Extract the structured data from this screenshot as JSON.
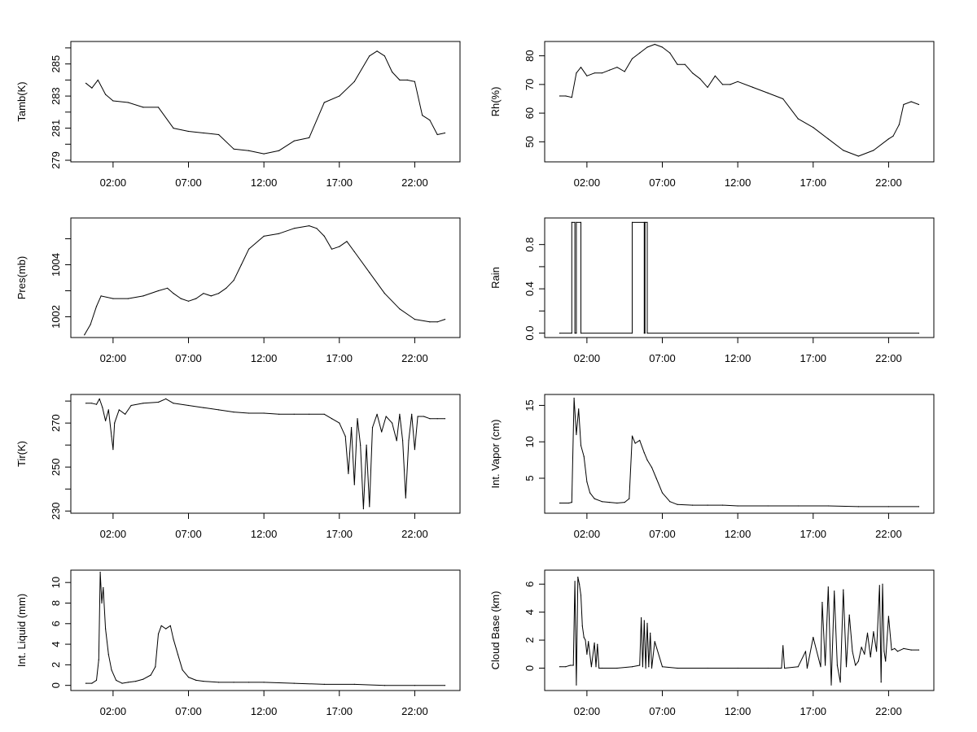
{
  "chart_data": [
    {
      "type": "line",
      "ylabel": "Tamb(K)",
      "xlabel": "",
      "x_ticks": [
        "02:00",
        "07:00",
        "12:00",
        "17:00",
        "22:00"
      ],
      "x_tick_hours": [
        2,
        7,
        12,
        17,
        22
      ],
      "xlim_hours": [
        -0.8,
        25.0
      ],
      "y_ticks": [
        "279",
        "281",
        "283",
        "285"
      ],
      "ylim": [
        278.9,
        286.4
      ],
      "x_hours": [
        0.2,
        0.6,
        1.0,
        1.5,
        2.0,
        3.0,
        4.0,
        5.0,
        6.0,
        7.0,
        8.0,
        9.0,
        10.0,
        11.0,
        12.0,
        13.0,
        14.0,
        15.0,
        16.0,
        17.0,
        18.0,
        19.0,
        19.5,
        20.0,
        20.5,
        21.0,
        21.5,
        22.0,
        22.5,
        23.0,
        23.5,
        24.0
      ],
      "values": [
        283.8,
        283.5,
        284.0,
        283.1,
        282.7,
        282.6,
        282.3,
        282.3,
        281.0,
        280.8,
        280.7,
        280.6,
        279.7,
        279.6,
        279.4,
        279.6,
        280.2,
        280.4,
        282.6,
        283.0,
        283.9,
        285.5,
        285.8,
        285.5,
        284.5,
        284.0,
        284.0,
        283.9,
        281.8,
        281.5,
        280.6,
        280.7
      ]
    },
    {
      "type": "line",
      "ylabel": "Rh(%)",
      "xlabel": "",
      "x_ticks": [
        "02:00",
        "07:00",
        "12:00",
        "17:00",
        "22:00"
      ],
      "x_tick_hours": [
        2,
        7,
        12,
        17,
        22
      ],
      "xlim_hours": [
        -0.8,
        25.0
      ],
      "y_ticks": [
        "50",
        "60",
        "70",
        "80"
      ],
      "ylim": [
        43.0,
        85.0
      ],
      "x_hours": [
        0.2,
        0.6,
        1.0,
        1.3,
        1.6,
        2.0,
        2.5,
        3.0,
        3.5,
        4.0,
        4.5,
        5.0,
        5.5,
        6.0,
        6.5,
        7.0,
        7.5,
        8.0,
        8.5,
        9.0,
        9.5,
        10.0,
        10.5,
        11.0,
        11.5,
        12.0,
        13.0,
        14.0,
        15.0,
        16.0,
        17.0,
        18.0,
        19.0,
        20.0,
        21.0,
        22.0,
        22.3,
        22.7,
        23.0,
        23.5,
        24.0
      ],
      "values": [
        66.0,
        66.0,
        65.5,
        74.0,
        76.0,
        73.0,
        74.0,
        74.0,
        75.0,
        76.0,
        74.5,
        79.0,
        81.0,
        83.0,
        84.0,
        83.0,
        81.0,
        77.0,
        77.0,
        74.0,
        72.0,
        69.0,
        73.0,
        70.0,
        70.0,
        71.0,
        69.0,
        67.0,
        65.0,
        58.0,
        55.0,
        51.0,
        47.0,
        45.0,
        47.0,
        51.0,
        52.0,
        56.0,
        63.0,
        64.0,
        63.0
      ]
    },
    {
      "type": "line",
      "ylabel": "Pres(mb)",
      "xlabel": "",
      "x_ticks": [
        "02:00",
        "07:00",
        "12:00",
        "17:00",
        "22:00"
      ],
      "x_tick_hours": [
        2,
        7,
        12,
        17,
        22
      ],
      "xlim_hours": [
        -0.8,
        25.0
      ],
      "y_ticks": [
        "1002",
        "1004"
      ],
      "ylim": [
        1001.2,
        1005.8
      ],
      "x_hours": [
        0.1,
        0.5,
        0.9,
        1.2,
        2.0,
        3.0,
        4.0,
        5.0,
        5.6,
        6.0,
        6.5,
        7.0,
        7.5,
        8.0,
        8.5,
        9.0,
        9.5,
        10.0,
        10.5,
        11.0,
        12.0,
        13.0,
        14.0,
        15.0,
        15.5,
        16.0,
        16.5,
        17.0,
        17.5,
        18.0,
        19.0,
        20.0,
        21.0,
        22.0,
        23.0,
        23.5,
        24.0
      ],
      "values": [
        1001.3,
        1001.7,
        1002.4,
        1002.8,
        1002.7,
        1002.7,
        1002.8,
        1003.0,
        1003.1,
        1002.9,
        1002.7,
        1002.6,
        1002.7,
        1002.9,
        1002.8,
        1002.9,
        1003.1,
        1003.4,
        1004.0,
        1004.6,
        1005.1,
        1005.2,
        1005.4,
        1005.5,
        1005.4,
        1005.1,
        1004.6,
        1004.7,
        1004.9,
        1004.5,
        1003.7,
        1002.9,
        1002.3,
        1001.9,
        1001.8,
        1001.8,
        1001.9
      ]
    },
    {
      "type": "line",
      "ylabel": "Rain",
      "xlabel": "",
      "x_ticks": [
        "02:00",
        "07:00",
        "12:00",
        "17:00",
        "22:00"
      ],
      "x_tick_hours": [
        2,
        7,
        12,
        17,
        22
      ],
      "xlim_hours": [
        -0.8,
        25.0
      ],
      "y_ticks": [
        "0.0",
        "0.4",
        "0.8"
      ],
      "ylim": [
        -0.04,
        1.04
      ],
      "x_hours": [
        0.2,
        1.0,
        1.0,
        1.2,
        1.2,
        1.3,
        1.3,
        1.6,
        1.6,
        5.0,
        5.0,
        5.8,
        5.8,
        5.85,
        5.85,
        6.0,
        6.0,
        24.0
      ],
      "values": [
        0,
        0,
        1,
        1,
        0,
        0,
        1,
        1,
        0,
        0,
        1,
        1,
        0,
        0,
        1,
        1,
        0,
        0
      ]
    },
    {
      "type": "line",
      "ylabel": "Tir(K)",
      "xlabel": "",
      "x_ticks": [
        "02:00",
        "07:00",
        "12:00",
        "17:00",
        "22:00"
      ],
      "x_tick_hours": [
        2,
        7,
        12,
        17,
        22
      ],
      "xlim_hours": [
        -0.8,
        25.0
      ],
      "y_ticks": [
        "230",
        "250",
        "270"
      ],
      "ylim": [
        229.0,
        283.0
      ],
      "x_hours": [
        0.2,
        0.6,
        0.9,
        1.1,
        1.3,
        1.5,
        1.7,
        1.9,
        2.0,
        2.1,
        2.4,
        2.8,
        3.2,
        4.0,
        5.0,
        5.5,
        6.0,
        7.0,
        8.0,
        9.0,
        10.0,
        11.0,
        12.0,
        13.0,
        14.0,
        15.0,
        16.0,
        16.5,
        17.0,
        17.4,
        17.6,
        17.8,
        18.0,
        18.2,
        18.4,
        18.6,
        18.8,
        19.0,
        19.2,
        19.5,
        19.8,
        20.1,
        20.5,
        20.8,
        21.0,
        21.2,
        21.4,
        21.6,
        21.8,
        22.0,
        22.2,
        22.6,
        23.0,
        23.5,
        24.0
      ],
      "values": [
        279.0,
        279.0,
        278.5,
        281.0,
        277.0,
        271.0,
        276.0,
        264.0,
        258.0,
        270.0,
        276.0,
        274.0,
        278.0,
        279.0,
        279.5,
        281.0,
        279.0,
        278.0,
        277.0,
        276.0,
        275.0,
        274.5,
        274.5,
        274.0,
        274.0,
        274.0,
        274.0,
        272.0,
        270.0,
        264.0,
        247.0,
        268.0,
        242.0,
        272.0,
        260.0,
        231.0,
        260.0,
        232.0,
        268.0,
        274.0,
        266.0,
        273.0,
        270.0,
        262.0,
        274.0,
        262.0,
        236.0,
        262.0,
        274.0,
        258.0,
        273.0,
        273.0,
        272.0,
        272.0,
        272.0
      ]
    },
    {
      "type": "line",
      "ylabel": "Int. Vapor (cm)",
      "xlabel": "",
      "x_ticks": [
        "02:00",
        "07:00",
        "12:00",
        "17:00",
        "22:00"
      ],
      "x_tick_hours": [
        2,
        7,
        12,
        17,
        22
      ],
      "xlim_hours": [
        -0.8,
        25.0
      ],
      "y_ticks": [
        "5",
        "10",
        "15"
      ],
      "ylim": [
        0.2,
        16.5
      ],
      "x_hours": [
        0.2,
        0.8,
        1.0,
        1.15,
        1.3,
        1.45,
        1.6,
        1.8,
        2.0,
        2.2,
        2.5,
        3.0,
        3.5,
        4.0,
        4.5,
        4.8,
        5.0,
        5.2,
        5.5,
        5.8,
        6.0,
        6.3,
        6.6,
        7.0,
        7.5,
        8.0,
        9.0,
        10.0,
        11.0,
        12.0,
        14.0,
        16.0,
        18.0,
        20.0,
        22.0,
        24.0
      ],
      "values": [
        1.6,
        1.6,
        1.7,
        16.0,
        11.0,
        14.5,
        9.5,
        8.0,
        4.5,
        3.0,
        2.2,
        1.8,
        1.7,
        1.6,
        1.7,
        2.2,
        10.8,
        9.8,
        10.2,
        8.5,
        7.5,
        6.5,
        5.0,
        3.0,
        1.8,
        1.4,
        1.3,
        1.3,
        1.3,
        1.2,
        1.2,
        1.2,
        1.2,
        1.1,
        1.1,
        1.1
      ]
    },
    {
      "type": "line",
      "ylabel": "Int. Liquid (mm)",
      "xlabel": "",
      "x_ticks": [
        "02:00",
        "07:00",
        "12:00",
        "17:00",
        "22:00"
      ],
      "x_tick_hours": [
        2,
        7,
        12,
        17,
        22
      ],
      "xlim_hours": [
        -0.8,
        25.0
      ],
      "y_ticks": [
        "0",
        "2",
        "4",
        "6",
        "8",
        "10"
      ],
      "ylim": [
        -0.5,
        11.2
      ],
      "x_hours": [
        0.2,
        0.6,
        0.9,
        1.05,
        1.15,
        1.25,
        1.35,
        1.5,
        1.7,
        1.9,
        2.2,
        2.6,
        3.0,
        3.5,
        4.0,
        4.5,
        4.8,
        5.0,
        5.2,
        5.5,
        5.8,
        6.0,
        6.3,
        6.6,
        7.0,
        7.5,
        8.0,
        9.0,
        10.0,
        11.0,
        12.0,
        14.0,
        16.0,
        18.0,
        20.0,
        22.0,
        24.0
      ],
      "values": [
        0.2,
        0.2,
        0.5,
        2.5,
        11.0,
        8.0,
        9.5,
        5.5,
        3.0,
        1.5,
        0.5,
        0.2,
        0.3,
        0.4,
        0.6,
        1.0,
        1.8,
        5.0,
        5.8,
        5.5,
        5.8,
        4.5,
        3.0,
        1.5,
        0.8,
        0.5,
        0.4,
        0.3,
        0.3,
        0.3,
        0.3,
        0.2,
        0.1,
        0.1,
        0.0,
        0.0,
        0.0
      ]
    },
    {
      "type": "line",
      "ylabel": "Cloud Base (km)",
      "xlabel": "",
      "x_ticks": [
        "02:00",
        "07:00",
        "12:00",
        "17:00",
        "22:00"
      ],
      "x_tick_hours": [
        2,
        7,
        12,
        17,
        22
      ],
      "xlim_hours": [
        -0.8,
        25.0
      ],
      "y_ticks": [
        "0",
        "2",
        "4",
        "6"
      ],
      "ylim": [
        -1.6,
        7.0
      ],
      "x_hours": [
        0.2,
        0.6,
        0.9,
        1.1,
        1.2,
        1.3,
        1.4,
        1.5,
        1.6,
        1.7,
        1.8,
        1.9,
        2.0,
        2.1,
        2.3,
        2.5,
        2.6,
        2.7,
        2.8,
        3.0,
        4.0,
        5.0,
        5.5,
        5.6,
        5.7,
        5.8,
        5.9,
        6.0,
        6.1,
        6.2,
        6.3,
        6.5,
        7.0,
        8.0,
        10.0,
        12.0,
        14.0,
        14.9,
        15.0,
        15.1,
        16.0,
        16.5,
        16.6,
        17.0,
        17.5,
        17.6,
        17.8,
        18.0,
        18.2,
        18.4,
        18.6,
        18.8,
        19.0,
        19.2,
        19.4,
        19.6,
        19.8,
        20.0,
        20.2,
        20.4,
        20.6,
        20.8,
        21.0,
        21.2,
        21.4,
        21.5,
        21.6,
        21.7,
        21.8,
        22.0,
        22.2,
        22.4,
        22.6,
        23.0,
        23.5,
        24.0
      ],
      "values": [
        0.1,
        0.1,
        0.2,
        0.2,
        6.2,
        -1.2,
        6.5,
        6.0,
        5.2,
        3.0,
        2.2,
        2.0,
        1.0,
        1.9,
        0.1,
        1.8,
        0.1,
        1.7,
        0.0,
        0.0,
        0.0,
        0.1,
        0.2,
        3.6,
        0.1,
        3.4,
        0.0,
        3.2,
        0.1,
        2.5,
        0.0,
        1.9,
        0.1,
        0.0,
        0.0,
        0.0,
        0.0,
        0.0,
        1.6,
        0.0,
        0.1,
        1.2,
        0.0,
        2.2,
        0.1,
        4.7,
        0.2,
        5.8,
        -1.2,
        5.5,
        0.2,
        -1.0,
        5.6,
        0.1,
        3.8,
        1.2,
        0.2,
        0.5,
        1.5,
        1.0,
        2.5,
        0.8,
        2.6,
        1.2,
        5.9,
        -1.0,
        6.0,
        1.2,
        0.5,
        3.7,
        1.3,
        1.4,
        1.2,
        1.4,
        1.3,
        1.3
      ]
    }
  ]
}
